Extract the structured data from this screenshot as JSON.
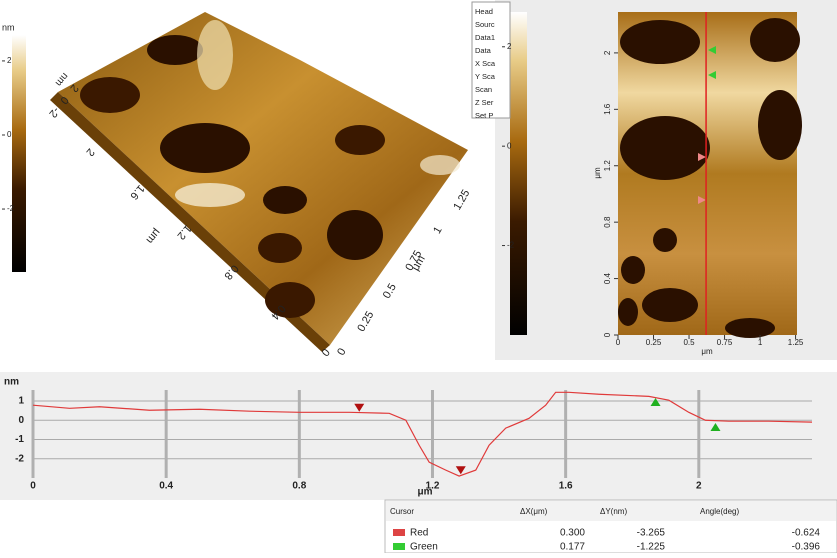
{
  "view_3d": {
    "colorbar": {
      "label": "nm",
      "clim": [
        -3.7,
        2.7
      ],
      "ticks": [
        2,
        0,
        -2
      ]
    },
    "z_axis": {
      "label": "nm",
      "ticks": [
        2,
        0,
        -2
      ]
    },
    "y_axis": {
      "label": "μm",
      "ticks": [
        2,
        1.6,
        1.2,
        0.8,
        0.4,
        0
      ]
    },
    "x_axis": {
      "label": "μm",
      "ticks": [
        0,
        0.25,
        0.5,
        0.75,
        1,
        1.25
      ]
    }
  },
  "menu": {
    "items": [
      "Head",
      "Sourc",
      "Data1",
      "Data",
      "X Sca",
      "Y Sca",
      "Scan",
      "Z Ser",
      "Set P"
    ]
  },
  "image_2d": {
    "colorbar": {
      "clim": [
        -3.8,
        2.7
      ],
      "ticks": [
        2,
        0,
        -2
      ]
    },
    "xlim": [
      0,
      1.26
    ],
    "ylim": [
      0,
      2.29
    ],
    "xticks": [
      0,
      0.25,
      0.5,
      0.75,
      1,
      1.25
    ],
    "yticks": [
      0,
      0.4,
      0.8,
      1.2,
      1.6,
      2
    ],
    "x_label": "μm",
    "y_label": "μm",
    "line_x": 0.62
  },
  "chart_data": {
    "type": "line",
    "y_label": "nm",
    "x_label": "μm",
    "color": "#e03a3a",
    "x": [
      0,
      0.11,
      0.2,
      0.35,
      0.5,
      0.65,
      0.8,
      0.95,
      1.07,
      1.12,
      1.16,
      1.19,
      1.24,
      1.28,
      1.33,
      1.37,
      1.42,
      1.49,
      1.54,
      1.57,
      1.61,
      1.7,
      1.85,
      1.91,
      1.97,
      2.02,
      2.09,
      2.21,
      2.34
    ],
    "values": [
      0.78,
      0.62,
      0.7,
      0.52,
      0.57,
      0.47,
      0.41,
      0.41,
      0.36,
      0,
      -1.3,
      -2.18,
      -2.59,
      -2.9,
      -2.59,
      -1.3,
      -0.41,
      0.1,
      0.78,
      1.45,
      1.45,
      1.35,
      1.24,
      1.04,
      0.41,
      0,
      -0.05,
      -0.05,
      -0.1
    ],
    "xlim": [
      0,
      2.34
    ],
    "ylim": [
      -3,
      1.57
    ],
    "xticks": [
      0,
      0.4,
      0.8,
      1.2,
      1.6,
      2
    ],
    "yticks": [
      1,
      0,
      -1,
      -2
    ],
    "grid": true,
    "red_markers": {
      "x": [
        0.98,
        1.285
      ],
      "y": [
        0.65,
        -2.6
      ]
    },
    "green_markers": {
      "x": [
        1.87,
        2.05
      ],
      "y": [
        0.95,
        -0.35
      ]
    }
  },
  "cursor_table": {
    "columns": [
      "Cursor",
      "ΔX(μm)",
      "ΔY(nm)",
      "Angle(deg)"
    ],
    "rows": [
      [
        "Red",
        "0.300",
        "-3.265",
        "-0.624"
      ],
      [
        "Green",
        "0.177",
        "-1.225",
        "-0.396"
      ]
    ]
  }
}
